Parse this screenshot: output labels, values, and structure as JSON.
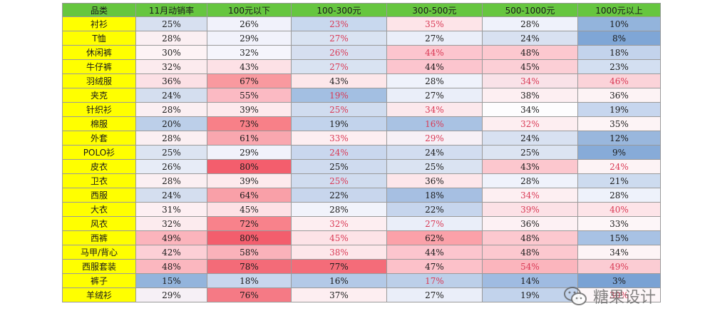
{
  "table": {
    "columns": [
      "品类",
      "11月动销率",
      "100元以下",
      "100-300元",
      "300-500元",
      "500-1000元",
      "1000元以上"
    ],
    "rows": [
      {
        "category": "衬衫",
        "cells": [
          "25%",
          "26%",
          "23%",
          "35%",
          "28%",
          "10%"
        ],
        "colors": [
          "#d7e0f0",
          "#f1f2fb",
          "#c8d8ee",
          "#fde4e8",
          "#eff2fb",
          "#93b4dc"
        ],
        "red": [
          false,
          false,
          true,
          true,
          false,
          false
        ]
      },
      {
        "category": "T恤",
        "cells": [
          "28%",
          "29%",
          "27%",
          "27%",
          "24%",
          "8%"
        ],
        "colors": [
          "#fbeff2",
          "#f1f2fb",
          "#d9e3f2",
          "#eaeef9",
          "#d8e1f1",
          "#7fa6d6"
        ],
        "red": [
          false,
          false,
          true,
          false,
          false,
          false
        ]
      },
      {
        "category": "休闲裤",
        "cells": [
          "30%",
          "32%",
          "26%",
          "44%",
          "48%",
          "18%"
        ],
        "colors": [
          "#fdf3f5",
          "#f5f5fc",
          "#d6dff0",
          "#fcc5ce",
          "#fcc8cf",
          "#c3d3ec"
        ],
        "red": [
          false,
          false,
          true,
          true,
          false,
          false
        ]
      },
      {
        "category": "牛仔裤",
        "cells": [
          "32%",
          "43%",
          "27%",
          "44%",
          "45%",
          "23%"
        ],
        "colors": [
          "#fcebee",
          "#fde1e6",
          "#d9e3f2",
          "#fcc5ce",
          "#fccfd6",
          "#d3dff1"
        ],
        "red": [
          false,
          false,
          true,
          false,
          false,
          false
        ]
      },
      {
        "category": "羽绒服",
        "cells": [
          "36%",
          "67%",
          "43%",
          "28%",
          "34%",
          "46%"
        ],
        "colors": [
          "#fce0e5",
          "#f9999f",
          "#fde7ea",
          "#eff2fb",
          "#f9e2e8",
          "#fbd3d9"
        ],
        "red": [
          false,
          false,
          false,
          false,
          true,
          true
        ]
      },
      {
        "category": "夹克",
        "cells": [
          "24%",
          "55%",
          "19%",
          "27%",
          "38%",
          "36%"
        ],
        "colors": [
          "#d4deef",
          "#fbbac3",
          "#a3bfe2",
          "#eaeef9",
          "#fdeff2",
          "#fdf3f5"
        ],
        "red": [
          false,
          false,
          true,
          false,
          false,
          false
        ]
      },
      {
        "category": "针织衫",
        "cells": [
          "28%",
          "39%",
          "25%",
          "34%",
          "34%",
          "19%"
        ],
        "colors": [
          "#fbeff2",
          "#fdeaed",
          "#d0dcef",
          "#fce8ec",
          "#fdfdfe",
          "#c7d6ee"
        ],
        "red": [
          false,
          false,
          true,
          true,
          false,
          false
        ]
      },
      {
        "category": "棉服",
        "cells": [
          "20%",
          "73%",
          "19%",
          "16%",
          "32%",
          "35%"
        ],
        "colors": [
          "#bccfe9",
          "#f88088",
          "#c2d3ec",
          "#a9c2e3",
          "#fdeef1",
          "#fdf4f6"
        ],
        "red": [
          false,
          false,
          false,
          true,
          true,
          false
        ]
      },
      {
        "category": "外套",
        "cells": [
          "28%",
          "61%",
          "33%",
          "29%",
          "24%",
          "12%"
        ],
        "colors": [
          "#fbeff2",
          "#f9a7af",
          "#fdeef1",
          "#f7f0f6",
          "#d8e1f1",
          "#99b7dd"
        ],
        "red": [
          false,
          false,
          true,
          true,
          false,
          false
        ]
      },
      {
        "category": "POLO衫",
        "cells": [
          "25%",
          "29%",
          "24%",
          "24%",
          "25%",
          "9%"
        ],
        "colors": [
          "#dce4f2",
          "#f1f2fb",
          "#c9d7ee",
          "#d2ddf0",
          "#dce4f2",
          "#87abd8"
        ],
        "red": [
          false,
          false,
          true,
          false,
          false,
          false
        ]
      },
      {
        "category": "皮衣",
        "cells": [
          "26%",
          "80%",
          "25%",
          "25%",
          "43%",
          "24%"
        ],
        "colors": [
          "#e7ecf7",
          "#f35e6d",
          "#cfdbef",
          "#dae3f2",
          "#fcc7ce",
          "#fdf3f5"
        ],
        "red": [
          false,
          false,
          false,
          false,
          false,
          true
        ]
      },
      {
        "category": "卫衣",
        "cells": [
          "28%",
          "39%",
          "25%",
          "36%",
          "28%",
          "21%"
        ],
        "colors": [
          "#fbeff2",
          "#fdeaed",
          "#d0dcef",
          "#fde6ea",
          "#eff2fb",
          "#cddbef"
        ],
        "red": [
          false,
          false,
          true,
          false,
          false,
          false
        ]
      },
      {
        "category": "西服",
        "cells": [
          "24%",
          "64%",
          "22%",
          "18%",
          "34%",
          "28%"
        ],
        "colors": [
          "#d4deef",
          "#f9a0a8",
          "#c8d6ed",
          "#a6bfe2",
          "#fdeff2",
          "#eef2fb"
        ],
        "red": [
          false,
          false,
          false,
          false,
          true,
          false
        ]
      },
      {
        "category": "大衣",
        "cells": [
          "31%",
          "45%",
          "28%",
          "22%",
          "39%",
          "40%"
        ],
        "colors": [
          "#fdeff2",
          "#fde1e5",
          "#f1f3fb",
          "#c6d5ed",
          "#fce1e6",
          "#fde4e8"
        ],
        "red": [
          false,
          false,
          false,
          false,
          true,
          true
        ]
      },
      {
        "category": "风衣",
        "cells": [
          "32%",
          "72%",
          "32%",
          "27%",
          "36%",
          "33%"
        ],
        "colors": [
          "#fcebee",
          "#f8828b",
          "#fdeef1",
          "#eaeef9",
          "#fdf1f4",
          "#fdf6f8"
        ],
        "red": [
          false,
          false,
          true,
          true,
          false,
          false
        ]
      },
      {
        "category": "西裤",
        "cells": [
          "49%",
          "80%",
          "45%",
          "62%",
          "48%",
          "15%"
        ],
        "colors": [
          "#fbb4bc",
          "#f35e6d",
          "#fde3e7",
          "#fba1a9",
          "#fcc8cf",
          "#a8c2e4"
        ],
        "red": [
          false,
          false,
          true,
          false,
          false,
          false
        ]
      },
      {
        "category": "马甲/背心",
        "cells": [
          "42%",
          "58%",
          "38%",
          "44%",
          "48%",
          "34%"
        ],
        "colors": [
          "#fccfd6",
          "#fab2ba",
          "#fde7ea",
          "#fcc5ce",
          "#fcc8cf",
          "#fdf4f6"
        ],
        "red": [
          false,
          false,
          true,
          false,
          false,
          false
        ]
      },
      {
        "category": "西服套装",
        "cells": [
          "48%",
          "78%",
          "77%",
          "47%",
          "54%",
          "49%"
        ],
        "colors": [
          "#fbb7bf",
          "#f36b78",
          "#f46c79",
          "#fcc1c9",
          "#fbb5bd",
          "#fbccd3"
        ],
        "red": [
          false,
          false,
          false,
          false,
          true,
          true
        ]
      },
      {
        "category": "裤子",
        "cells": [
          "15%",
          "18%",
          "16%",
          "17%",
          "14%",
          "3%"
        ],
        "colors": [
          "#93b4dc",
          "#c8d6ed",
          "#b3c9e7",
          "#bccfe9",
          "#9fbbe1",
          "#7aa2d4"
        ],
        "red": [
          false,
          false,
          false,
          true,
          false,
          false
        ]
      },
      {
        "category": "羊绒衫",
        "cells": [
          "29%",
          "76%",
          "37%",
          "27%",
          "19%",
          "30%"
        ],
        "colors": [
          "#f6f0f6",
          "#f57a85",
          "#fdeef1",
          "#eaeef9",
          "#c2d3ec",
          "#fdf6f8"
        ],
        "red": [
          false,
          false,
          false,
          false,
          false,
          true
        ]
      }
    ]
  },
  "watermark": {
    "icon": "wechat-icon",
    "text": "糖果设计"
  }
}
